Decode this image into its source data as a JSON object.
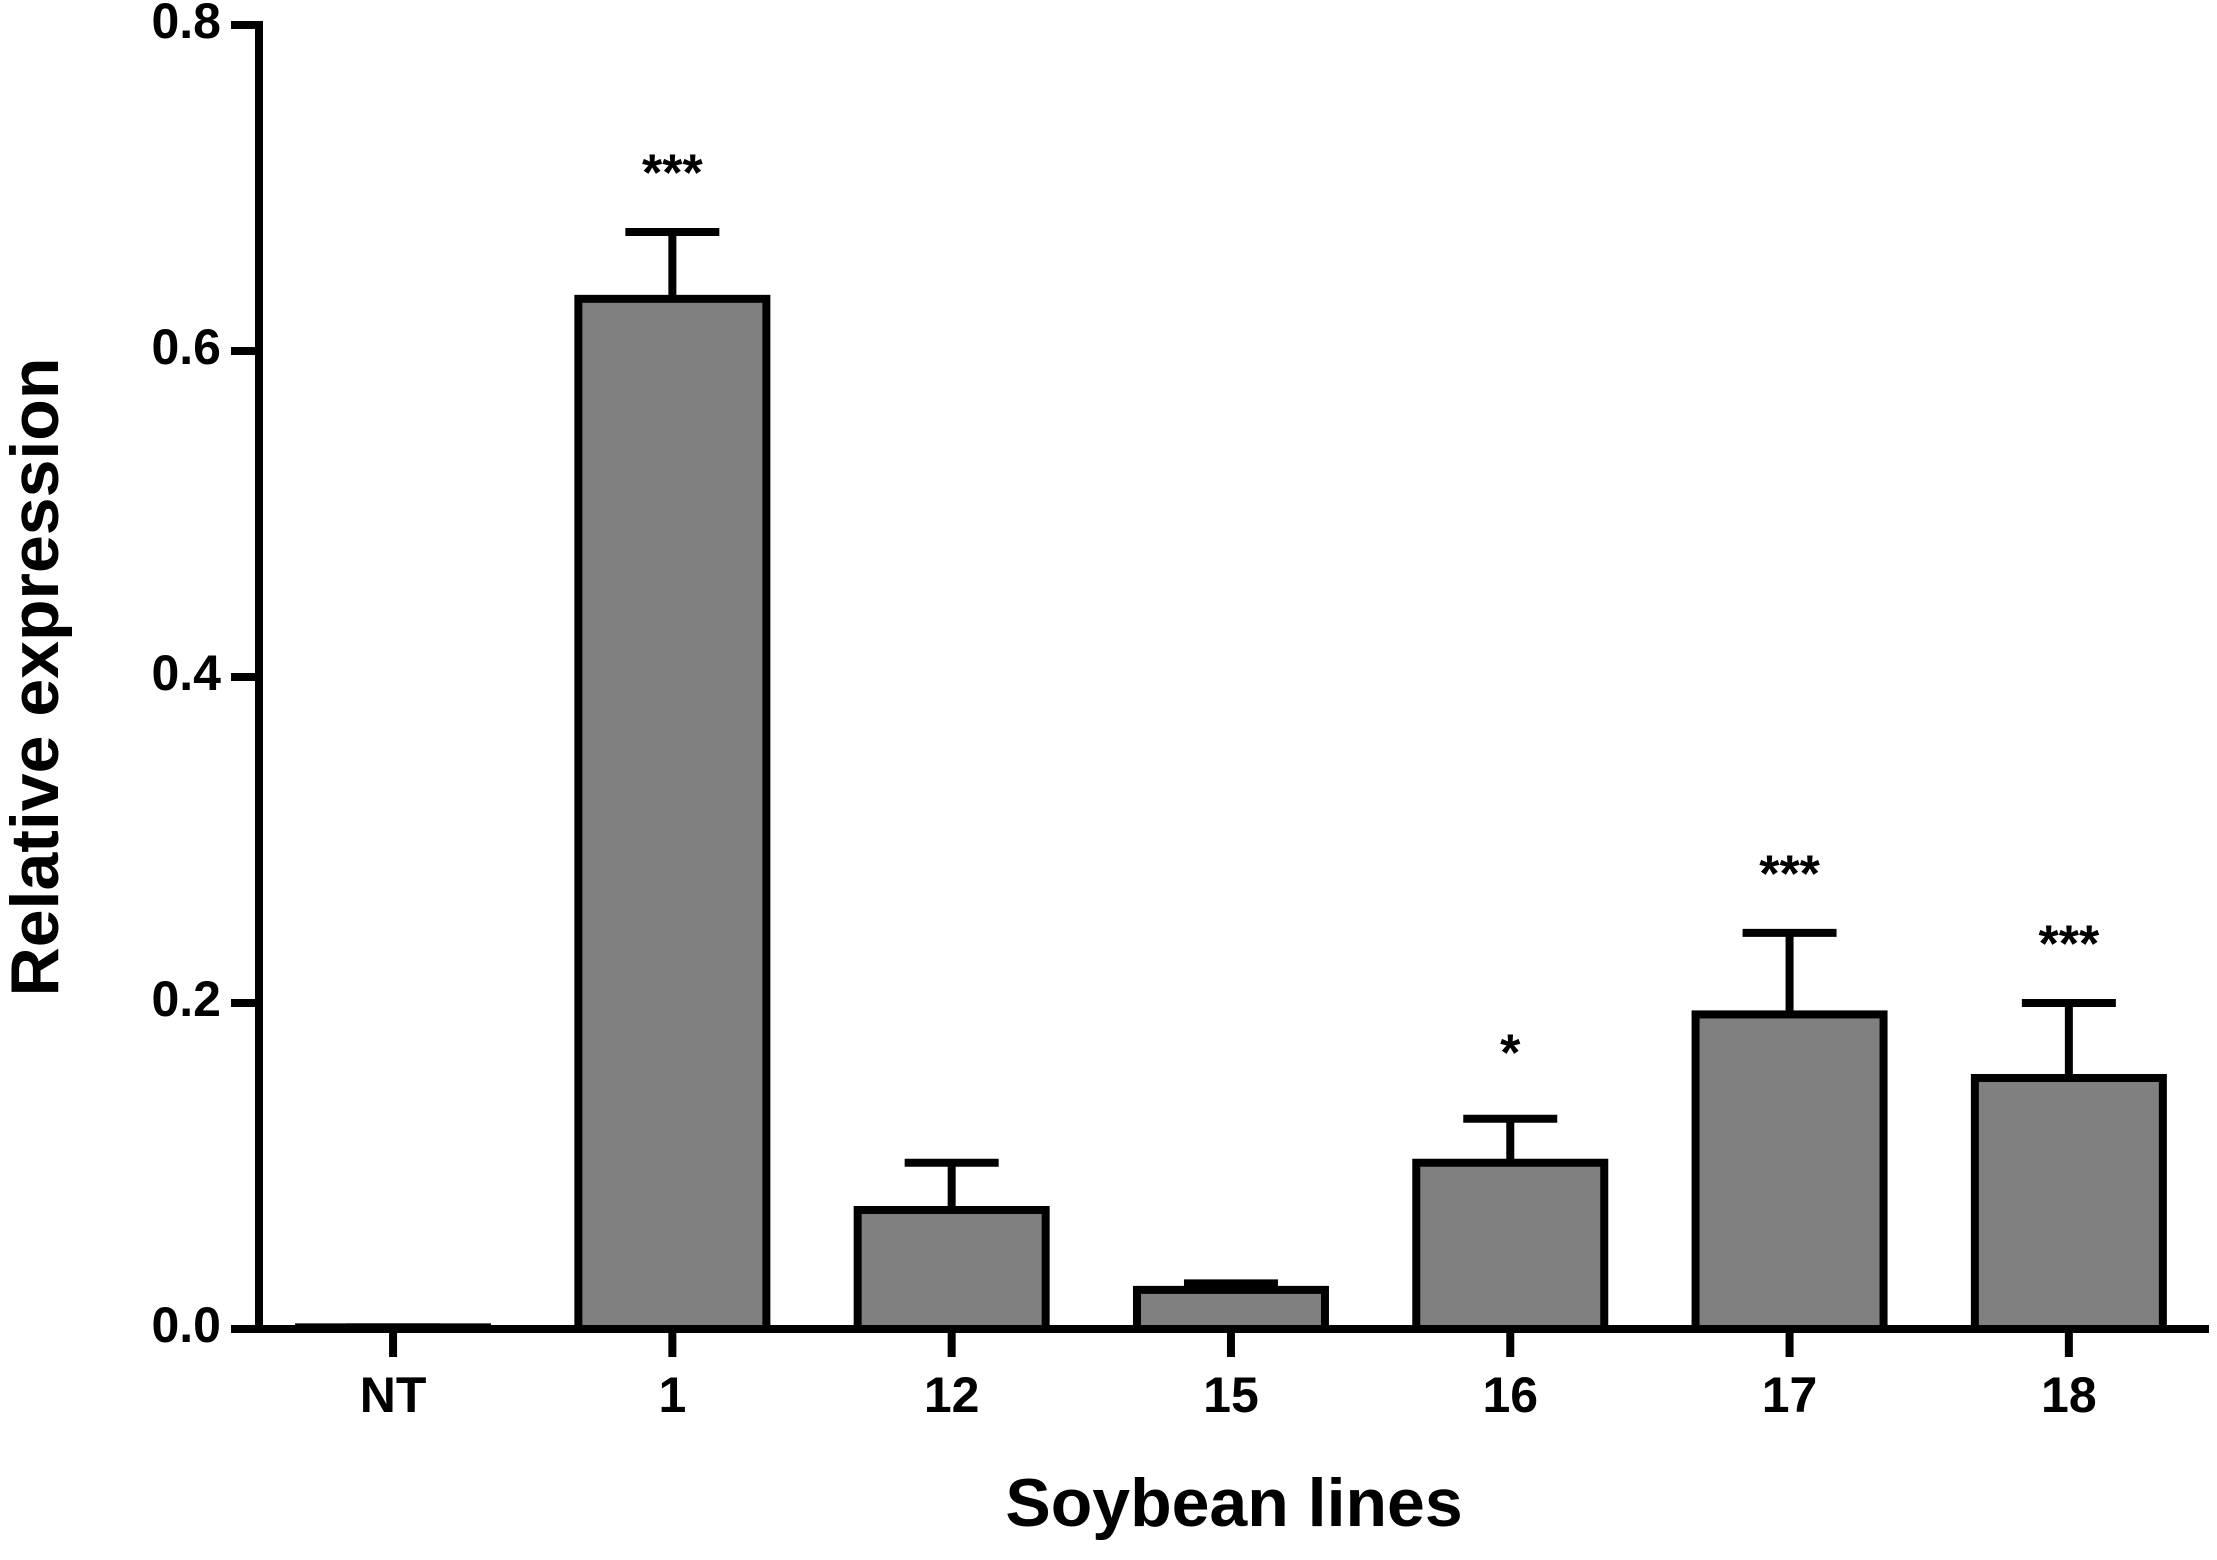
{
  "chart_data": {
    "type": "bar",
    "xlabel": "Soybean lines",
    "ylabel": "Relative expression",
    "categories": [
      "NT",
      "1",
      "12",
      "15",
      "16",
      "17",
      "18"
    ],
    "values": [
      0.001,
      0.632,
      0.073,
      0.024,
      0.102,
      0.193,
      0.154
    ],
    "errors": [
      0,
      0.041,
      0.029,
      0.004,
      0.027,
      0.05,
      0.046
    ],
    "annotations": [
      null,
      "***",
      null,
      null,
      "*",
      "***",
      "***"
    ],
    "color": "#808080",
    "ylim": [
      0,
      0.8
    ],
    "yticks": [
      {
        "value": 0,
        "label": "0.0"
      },
      0.2,
      0.4,
      0.6,
      0.8
    ]
  }
}
